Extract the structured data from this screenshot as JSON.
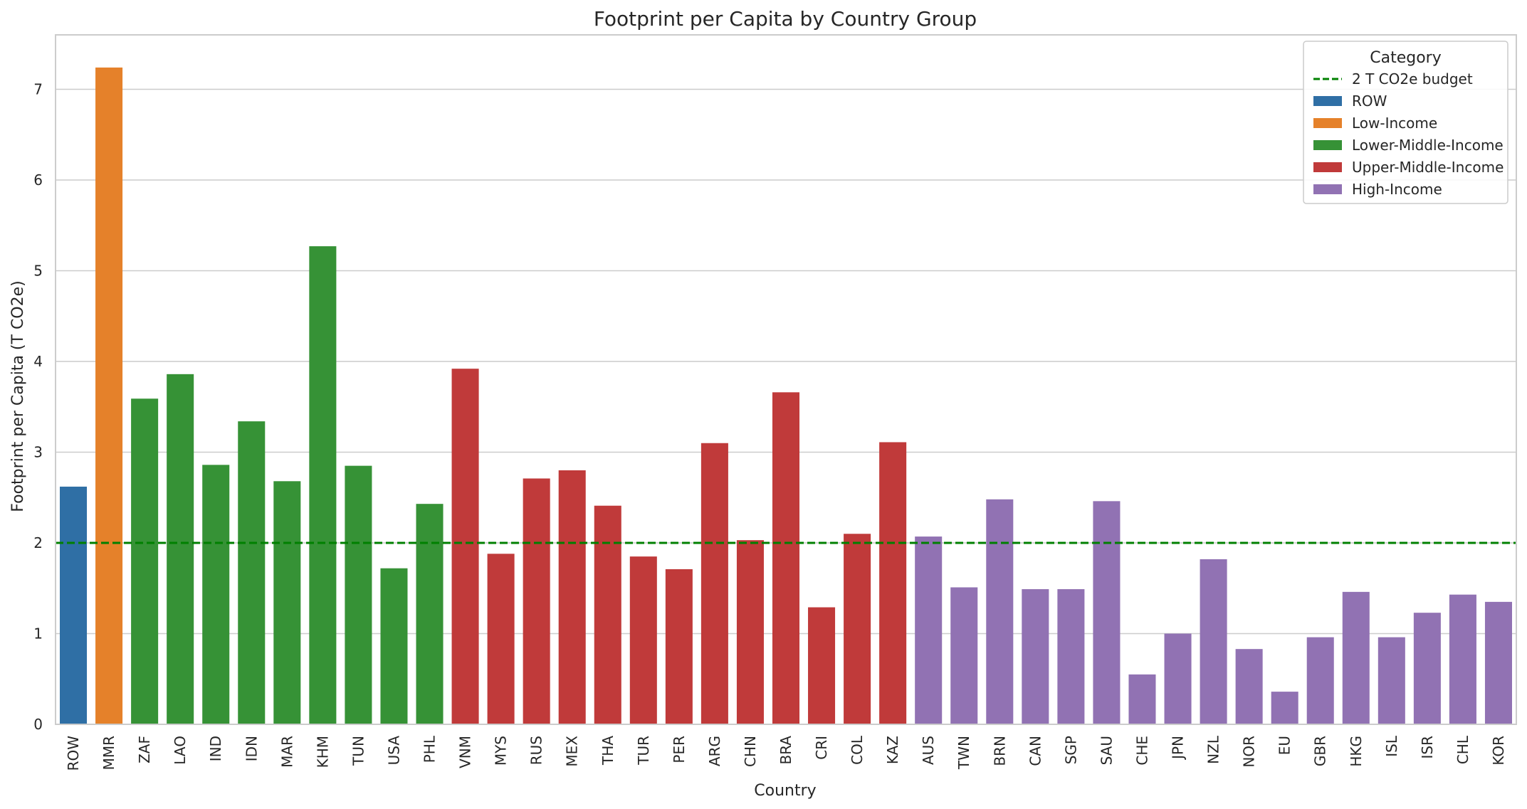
{
  "chart_data": {
    "type": "bar",
    "title": "Footprint per Capita by Country Group",
    "xlabel": "Country",
    "ylabel": "Footprint per Capita (T CO2e)",
    "ylim": [
      0,
      7.6
    ],
    "yticks": [
      0,
      1,
      2,
      3,
      4,
      5,
      6,
      7
    ],
    "grid": "horizontal",
    "categories": [
      "ROW",
      "MMR",
      "ZAF",
      "LAO",
      "IND",
      "IDN",
      "MAR",
      "KHM",
      "TUN",
      "USA",
      "PHL",
      "VNM",
      "MYS",
      "RUS",
      "MEX",
      "THA",
      "TUR",
      "PER",
      "ARG",
      "CHN",
      "BRA",
      "CRI",
      "COL",
      "KAZ",
      "AUS",
      "TWN",
      "BRN",
      "CAN",
      "SGP",
      "SAU",
      "CHE",
      "JPN",
      "NZL",
      "NOR",
      "EU",
      "GBR",
      "HKG",
      "ISL",
      "ISR",
      "CHL",
      "KOR"
    ],
    "values": [
      2.62,
      7.24,
      3.59,
      3.86,
      2.86,
      3.34,
      2.68,
      5.27,
      2.85,
      1.72,
      2.43,
      3.92,
      1.88,
      2.71,
      2.8,
      2.41,
      1.85,
      1.71,
      3.1,
      2.03,
      3.66,
      1.29,
      2.1,
      3.11,
      2.07,
      1.51,
      2.48,
      1.49,
      1.49,
      2.46,
      0.55,
      1.0,
      1.82,
      0.83,
      0.36,
      0.96,
      1.46,
      0.96,
      1.23,
      1.43,
      1.35
    ],
    "groups": [
      "ROW",
      "Low-Income",
      "Lower-Middle-Income",
      "Lower-Middle-Income",
      "Lower-Middle-Income",
      "Lower-Middle-Income",
      "Lower-Middle-Income",
      "Lower-Middle-Income",
      "Lower-Middle-Income",
      "Lower-Middle-Income",
      "Lower-Middle-Income",
      "Upper-Middle-Income",
      "Upper-Middle-Income",
      "Upper-Middle-Income",
      "Upper-Middle-Income",
      "Upper-Middle-Income",
      "Upper-Middle-Income",
      "Upper-Middle-Income",
      "Upper-Middle-Income",
      "Upper-Middle-Income",
      "Upper-Middle-Income",
      "Upper-Middle-Income",
      "Upper-Middle-Income",
      "Upper-Middle-Income",
      "High-Income",
      "High-Income",
      "High-Income",
      "High-Income",
      "High-Income",
      "High-Income",
      "High-Income",
      "High-Income",
      "High-Income",
      "High-Income",
      "High-Income",
      "High-Income",
      "High-Income",
      "High-Income",
      "High-Income",
      "High-Income",
      "High-Income"
    ],
    "reference_line": {
      "label": "2 T CO2e budget",
      "value": 2,
      "color": "#008000",
      "style": "dashed"
    },
    "legend": {
      "title": "Category",
      "placement": "top-right",
      "entries": [
        {
          "name": "ROW",
          "color": "#2f6fa5"
        },
        {
          "name": "Low-Income",
          "color": "#e5812a"
        },
        {
          "name": "Lower-Middle-Income",
          "color": "#369236"
        },
        {
          "name": "Upper-Middle-Income",
          "color": "#c03a3a"
        },
        {
          "name": "High-Income",
          "color": "#9172b3"
        }
      ]
    }
  }
}
